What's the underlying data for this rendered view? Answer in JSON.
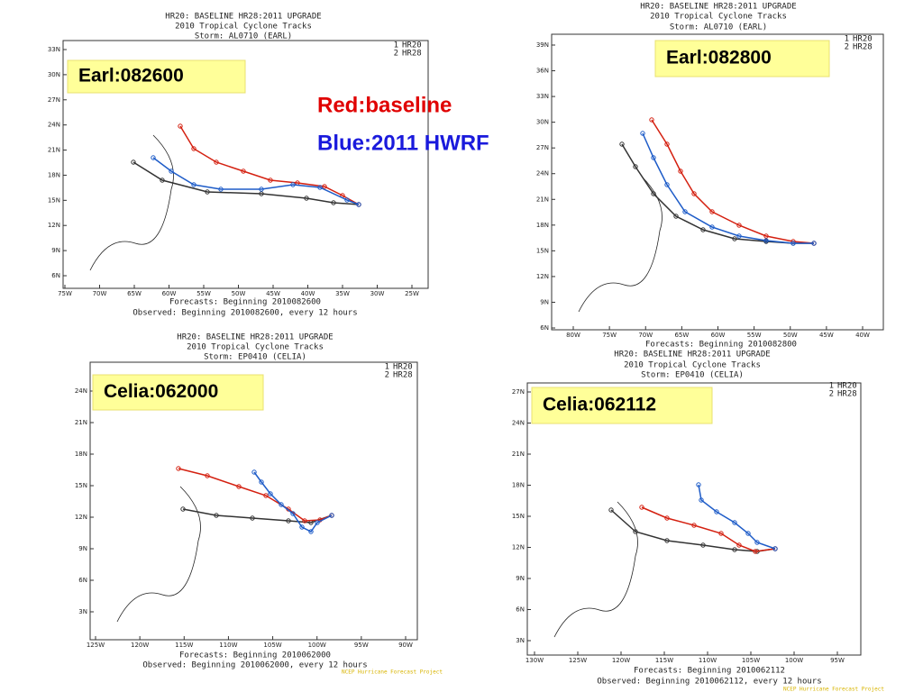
{
  "annotations": {
    "baseline": "Red:baseline",
    "hwrf": "Blue:2011 HWRF"
  },
  "panels": [
    {
      "label": "Earl:082600",
      "header": [
        "HR20: BASELINE   HR28:2011 UPGRADE",
        "2010 Tropical Cyclone Tracks",
        "Storm: AL0710 (EARL)"
      ],
      "legend": [
        {
          "marker": "1",
          "name": "HR20"
        },
        {
          "marker": "2",
          "name": "HR28"
        }
      ],
      "lat_labels": [
        "33N",
        "30N",
        "27N",
        "24N",
        "21N",
        "18N",
        "15N",
        "12N",
        "9N",
        "6N"
      ],
      "lon_labels": [
        "75W",
        "70W",
        "65W",
        "60W",
        "55W",
        "50W",
        "45W",
        "40W",
        "35W",
        "30W",
        "25W"
      ],
      "footer": [
        "Forecasts: Beginning 2010082600",
        "Observed: Beginning 2010082600, every 12 hours"
      ]
    },
    {
      "label": "Earl:082800",
      "header": [
        "HR20: BASELINE   HR28:2011 UPGRADE",
        "2010 Tropical Cyclone Tracks",
        "Storm: AL0710 (EARL)"
      ],
      "legend": [
        {
          "marker": "1",
          "name": "HR20"
        },
        {
          "marker": "2",
          "name": "HR28"
        }
      ],
      "lat_labels": [
        "39N",
        "36N",
        "33N",
        "30N",
        "27N",
        "24N",
        "21N",
        "18N",
        "15N",
        "12N",
        "9N",
        "6N"
      ],
      "lon_labels": [
        "80W",
        "75W",
        "70W",
        "65W",
        "60W",
        "55W",
        "50W",
        "45W",
        "40W"
      ],
      "footer": [
        "Forecasts: Beginning 2010082800"
      ]
    },
    {
      "label": "Celia:062000",
      "header": [
        "HR20: BASELINE   HR28:2011 UPGRADE",
        "2010 Tropical Cyclone Tracks",
        "Storm: EP0410 (CELIA)"
      ],
      "legend": [
        {
          "marker": "1",
          "name": "HR20"
        },
        {
          "marker": "2",
          "name": "HR28"
        }
      ],
      "lat_labels": [
        "24N",
        "21N",
        "18N",
        "15N",
        "12N",
        "9N",
        "6N",
        "3N"
      ],
      "lon_labels": [
        "125W",
        "120W",
        "115W",
        "110W",
        "105W",
        "100W",
        "95W",
        "90W"
      ],
      "footer": [
        "Forecasts: Beginning 2010062000",
        "Observed: Beginning 2010062000, every 12 hours"
      ],
      "credit": "NCEP Hurricane Forecast Project"
    },
    {
      "label": "Celia:062112",
      "header": [
        "HR20: BASELINE   HR28:2011 UPGRADE",
        "2010 Tropical Cyclone Tracks",
        "Storm: EP0410 (CELIA)"
      ],
      "legend": [
        {
          "marker": "1",
          "name": "HR20"
        },
        {
          "marker": "2",
          "name": "HR28"
        }
      ],
      "lat_labels": [
        "27N",
        "24N",
        "21N",
        "18N",
        "15N",
        "12N",
        "9N",
        "6N",
        "3N"
      ],
      "lon_labels": [
        "130W",
        "125W",
        "120W",
        "115W",
        "110W",
        "105W",
        "100W",
        "95W"
      ],
      "footer": [
        "Forecasts: Beginning 2010062112",
        "Observed: Beginning 2010062112, every 12 hours"
      ],
      "credit": "NCEP Hurricane Forecast Project"
    }
  ]
}
